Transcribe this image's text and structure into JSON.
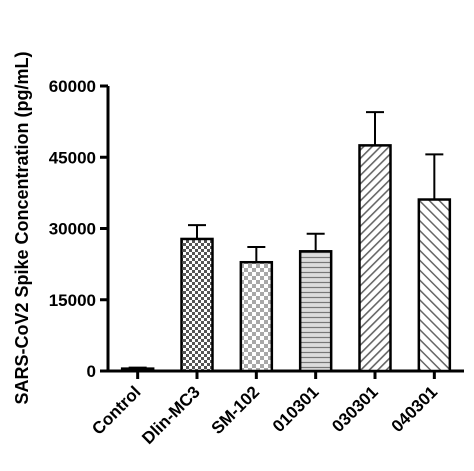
{
  "chart_data": {
    "type": "bar",
    "ylabel": "SARS-CoV2 Spike Concentration (pg/mL)",
    "ylim": [
      0,
      60000
    ],
    "yticks": [
      0,
      15000,
      30000,
      45000,
      60000
    ],
    "grid": false,
    "categories": [
      "Control",
      "Dlin-MC3",
      "SM-102",
      "010301",
      "030301",
      "040301"
    ],
    "values": [
      500,
      27800,
      22900,
      25200,
      47500,
      36100
    ],
    "errors": [
      200,
      2900,
      3200,
      3700,
      7000,
      9500
    ],
    "fill_patterns": [
      "solid-white",
      "checker-dark",
      "checker-light",
      "horizontal-lines",
      "diagonal-dense",
      "diagonal-sparse"
    ],
    "colors": {
      "ink": "#000000",
      "dark_fill": "#6f6f6f",
      "light_fill": "#d9d9d9",
      "mid_fill": "#9a9a9a",
      "background": "#ffffff"
    }
  }
}
